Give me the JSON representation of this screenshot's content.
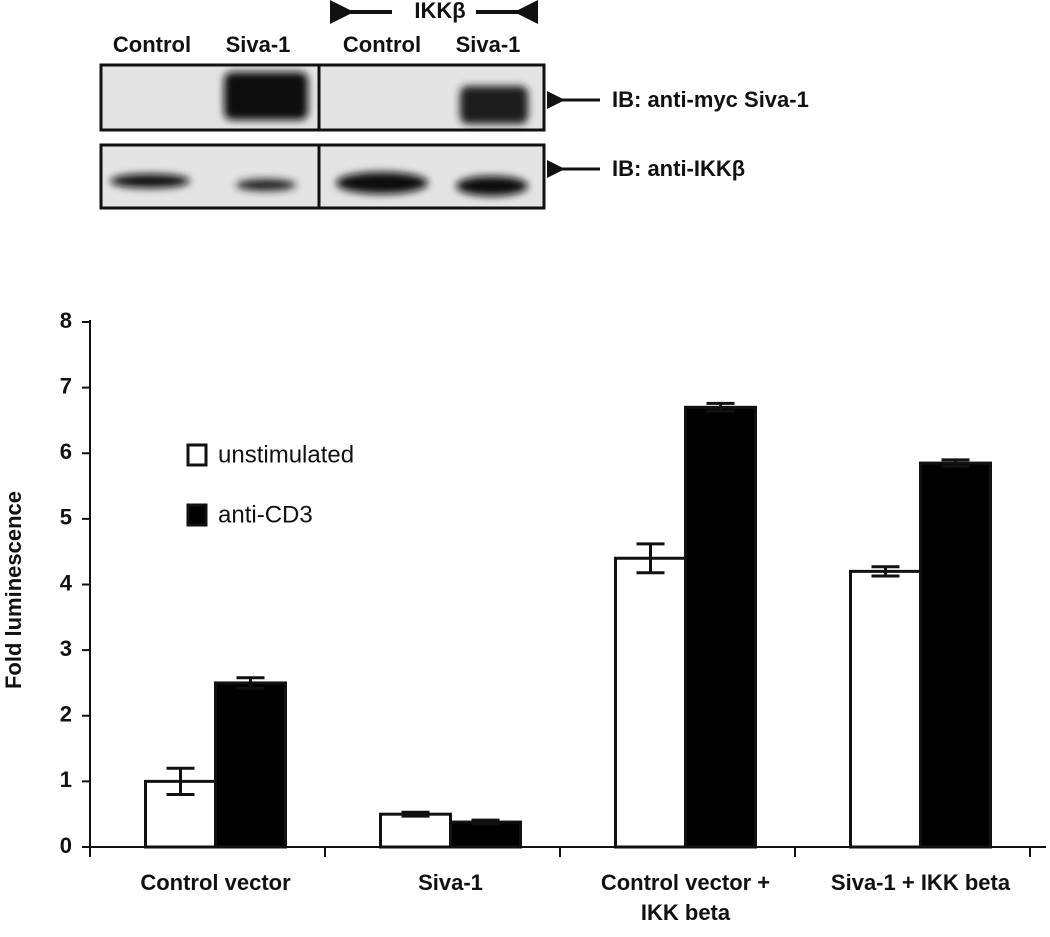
{
  "blot": {
    "group_label": "IKKβ",
    "lane_labels": [
      "Control",
      "Siva-1",
      "Control",
      "Siva-1"
    ],
    "row_labels": [
      "IB: anti-myc Siva-1",
      "IB: anti-IKKβ"
    ]
  },
  "chart_data": {
    "type": "bar",
    "y_label": "Fold luminescence",
    "categories": [
      "Control vector",
      "Siva-1",
      "Control vector + IKK beta",
      "Siva-1 + IKK beta"
    ],
    "series": [
      {
        "name": "unstimulated",
        "color": "#ffffff",
        "values": [
          1.0,
          0.5,
          4.4,
          4.2
        ],
        "errors": [
          0.2,
          0.03,
          0.22,
          0.07
        ]
      },
      {
        "name": "anti-CD3",
        "color": "#000000",
        "values": [
          2.5,
          0.38,
          6.7,
          5.85
        ],
        "errors": [
          0.08,
          0.03,
          0.06,
          0.05
        ]
      }
    ],
    "ylim": [
      0,
      8
    ],
    "yticks": [
      0,
      1,
      2,
      3,
      4,
      5,
      6,
      7,
      8
    ],
    "grid": false
  }
}
